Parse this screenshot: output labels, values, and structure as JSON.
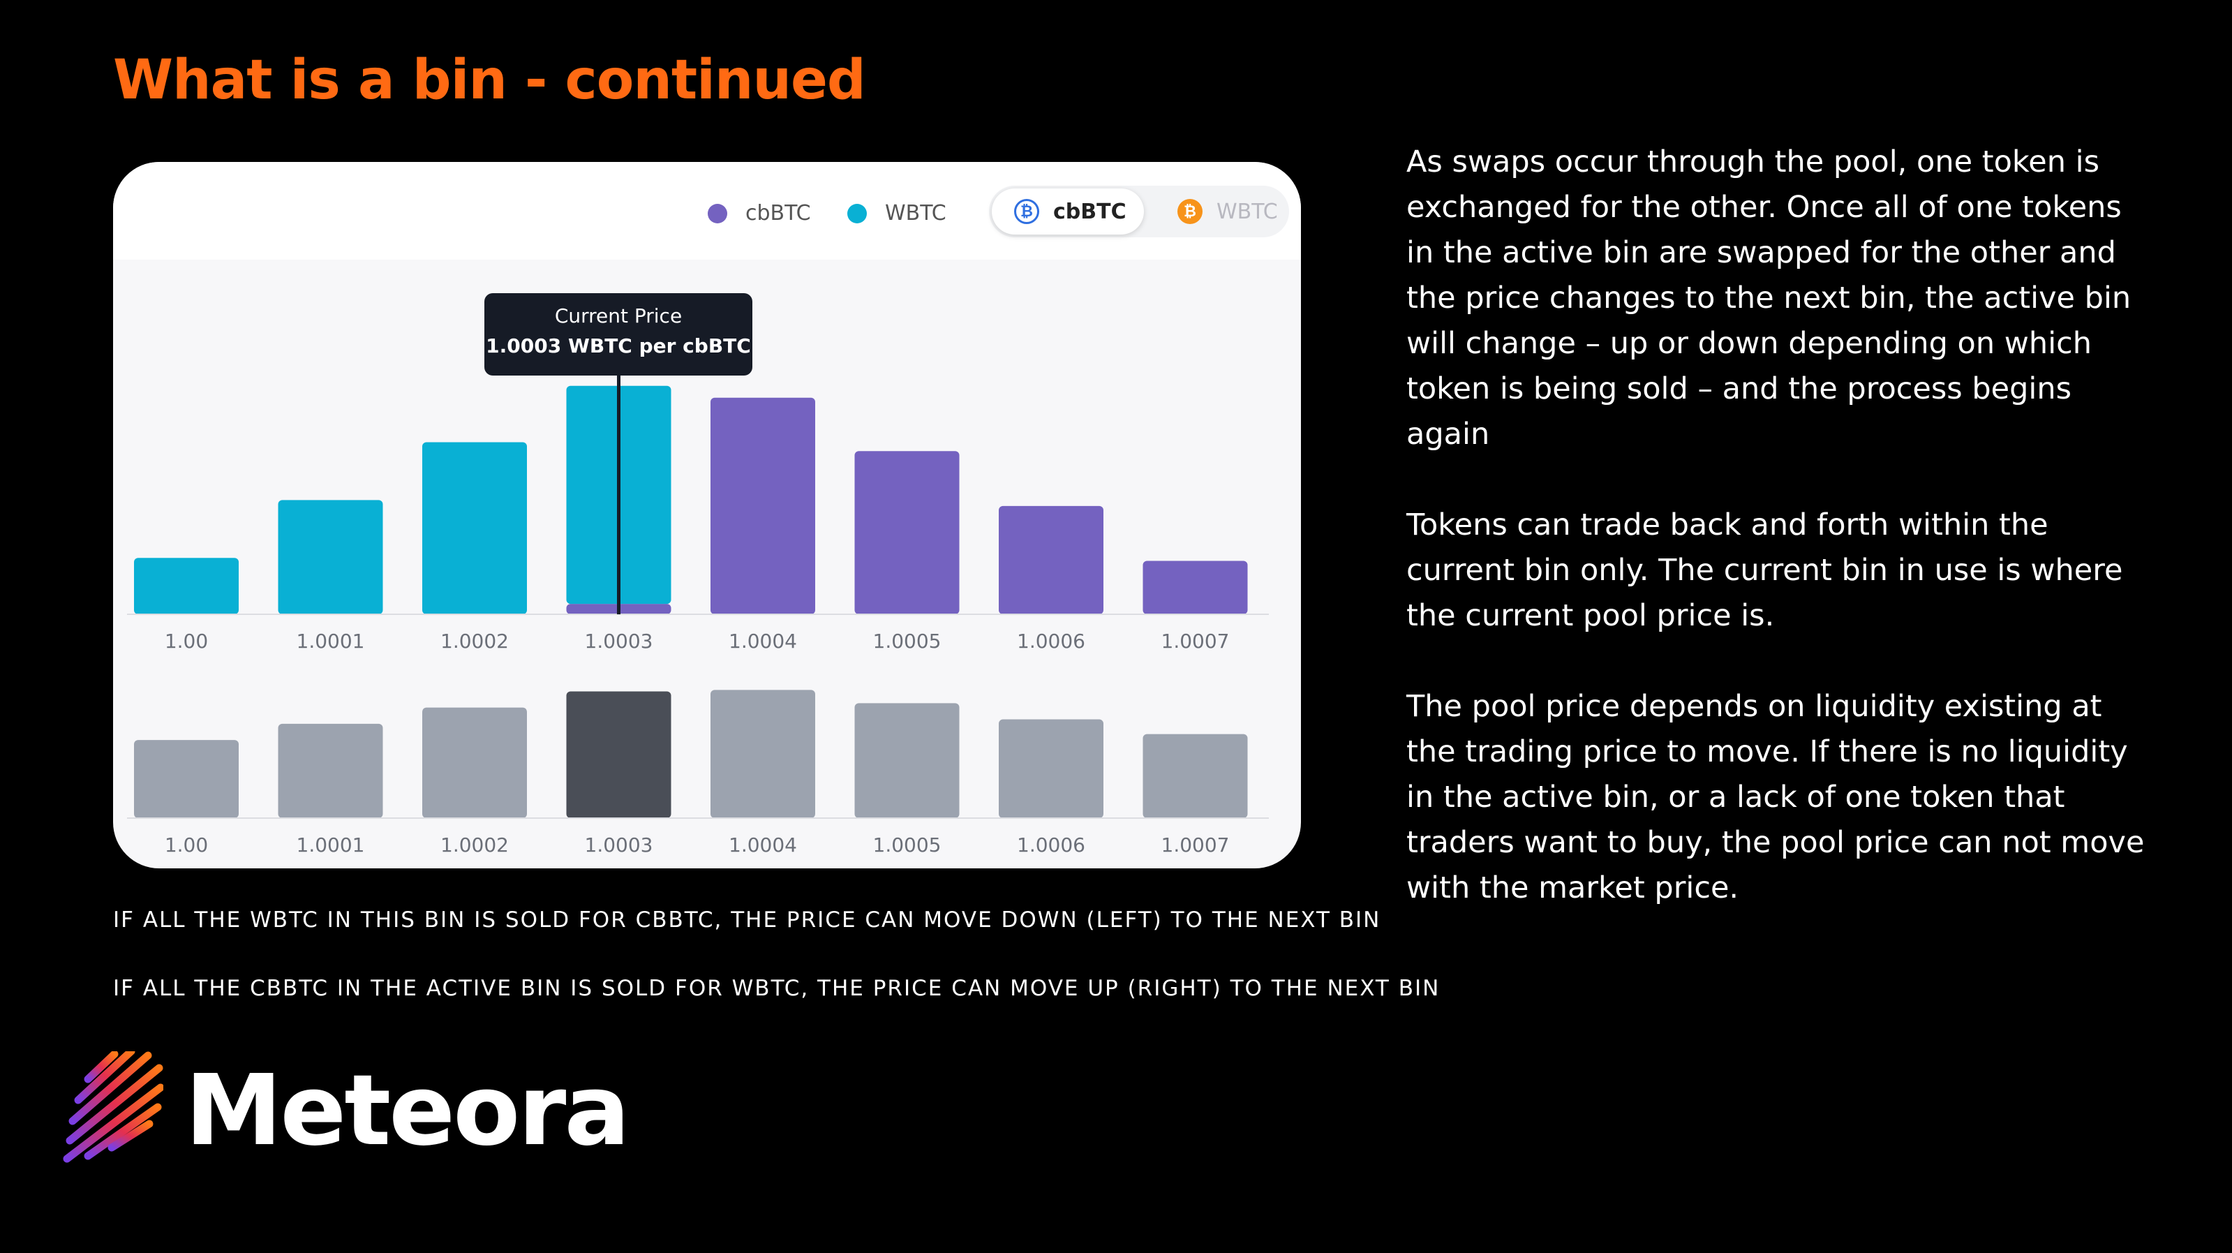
{
  "slide": {
    "title": "What is a bin - continued",
    "captions": [
      "IF ALL THE WBTC IN THIS BIN IS SOLD FOR CBBTC, THE PRICE CAN MOVE DOWN (LEFT) TO THE NEXT BIN",
      "IF ALL THE CBBTC IN THE ACTIVE BIN IS SOLD FOR WBTC, THE PRICE CAN MOVE UP (RIGHT) TO THE NEXT BIN"
    ],
    "paragraphs": [
      "As swaps occur through the pool, one token is exchanged for the other. Once all of one tokens in the active bin are swapped for the other and the price changes to the next bin, the active bin will change – up or down depending on which token is being sold – and the process begins again",
      "Tokens can trade back and forth within the current bin only. The current bin in use is where the current pool price is.",
      "The pool price depends on liquidity existing at the trading price to move. If there is no liquidity in the active bin, or a lack of one token that traders want to buy, the pool price can not move with the market price."
    ],
    "brand": "Meteora"
  },
  "legend": {
    "items": [
      {
        "label": "cbBTC",
        "color": "#7462c0"
      },
      {
        "label": "WBTC",
        "color": "#09b0d4"
      }
    ],
    "toggle": {
      "active_label": "cbBTC",
      "inactive_label": "WBTC",
      "active_icon": "bitcoin-icon",
      "inactive_icon": "bitcoin-icon"
    }
  },
  "tooltip": {
    "label": "Current Price",
    "value": "1.0003 WBTC per cbBTC"
  },
  "colors": {
    "wbtc": "#09b0d4",
    "cbbtc": "#7462c0",
    "lower_bar": "#9ca3af",
    "lower_bar_active": "#4a4e57",
    "title": "#ff6a13"
  },
  "chart_data": [
    {
      "type": "bar",
      "stacked": true,
      "categories": [
        "1.00",
        "1.0001",
        "1.0002",
        "1.0003",
        "1.0004",
        "1.0005",
        "1.0006",
        "1.0007"
      ],
      "series": [
        {
          "name": "WBTC",
          "values": [
            38,
            77,
            116,
            147,
            0,
            0,
            0,
            0
          ]
        },
        {
          "name": "cbBTC",
          "values": [
            0,
            0,
            0,
            7,
            146,
            110,
            73,
            36
          ]
        }
      ],
      "ylim": [
        0,
        160
      ],
      "active_category": "1.0003",
      "grid": false,
      "legend": "top-right"
    },
    {
      "type": "bar",
      "categories": [
        "1.00",
        "1.0001",
        "1.0002",
        "1.0003",
        "1.0004",
        "1.0005",
        "1.0006",
        "1.0007"
      ],
      "values": [
        53,
        64,
        75,
        86,
        87,
        78,
        67,
        57
      ],
      "ylim": [
        0,
        90
      ],
      "active_category": "1.0003",
      "grid": false
    }
  ]
}
